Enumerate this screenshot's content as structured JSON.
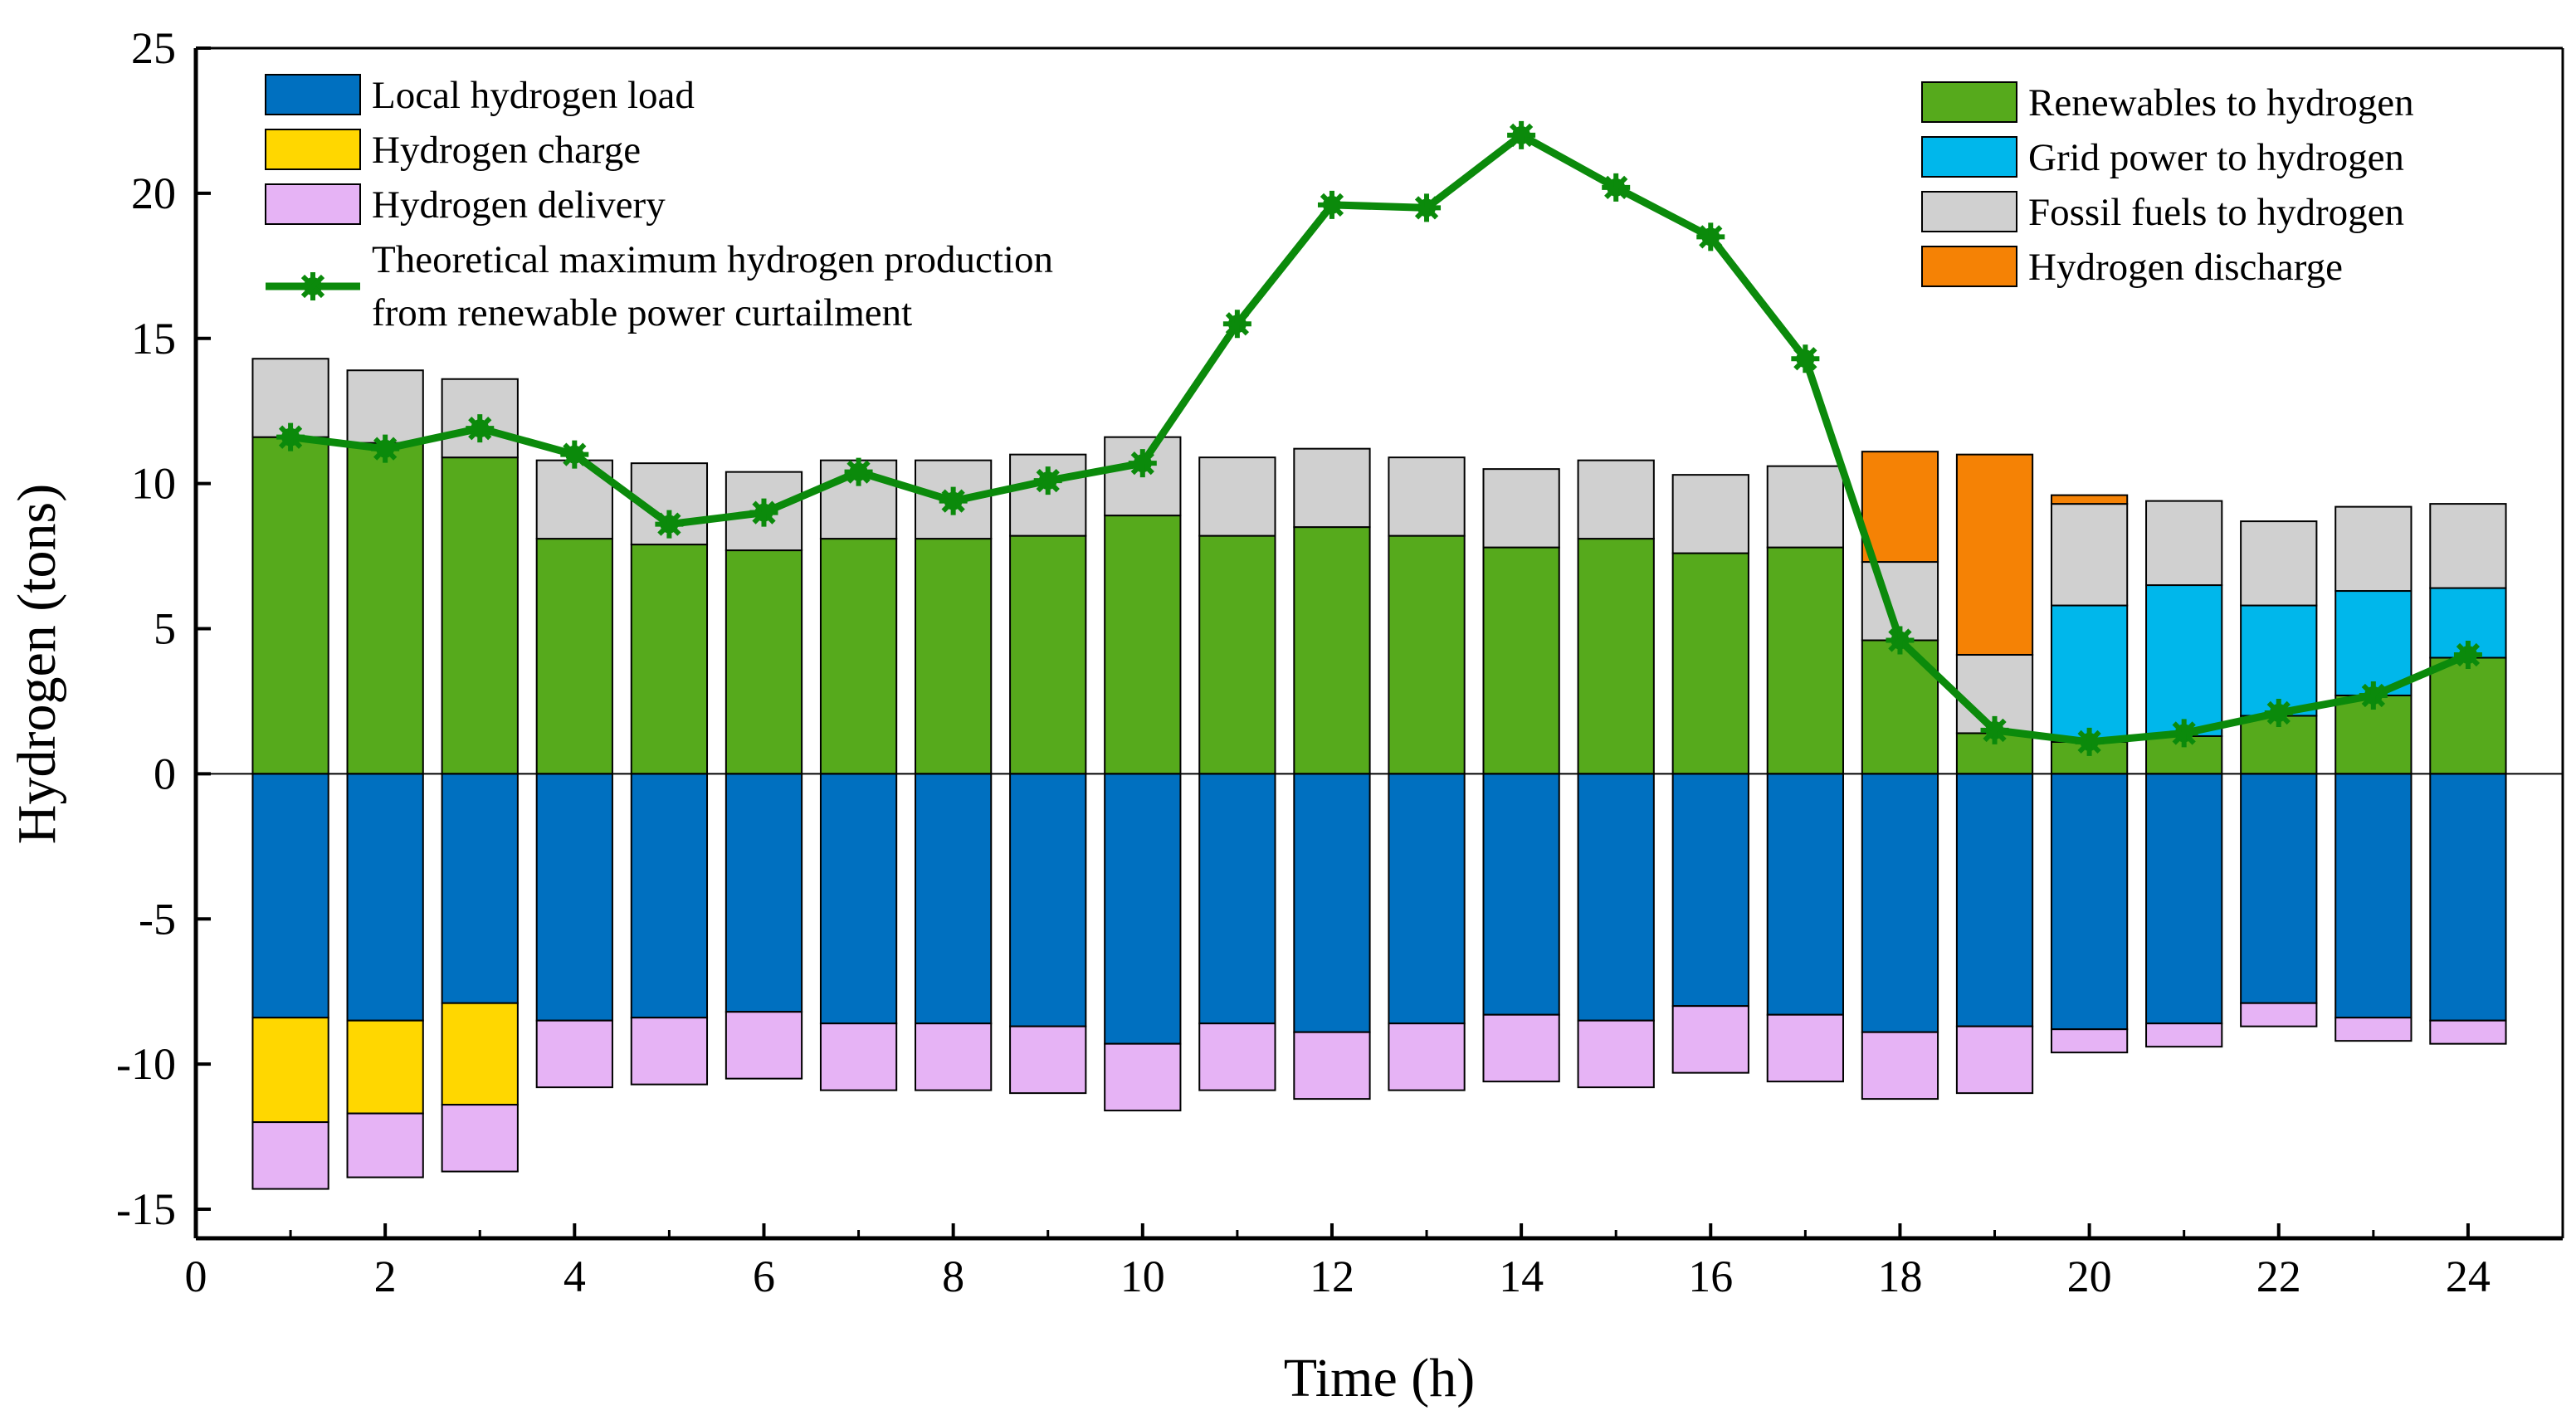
{
  "chart_data": {
    "type": "bar",
    "stacked": true,
    "title": "",
    "xlabel": "Time (h)",
    "ylabel": "Hydrogen (tons)",
    "xlim": [
      0,
      25
    ],
    "ylim": [
      -16,
      25
    ],
    "x_ticks": [
      0,
      2,
      4,
      6,
      8,
      10,
      12,
      14,
      16,
      18,
      20,
      22,
      24
    ],
    "y_ticks": [
      -15,
      -10,
      -5,
      0,
      5,
      10,
      15,
      20,
      25
    ],
    "x": [
      1,
      2,
      3,
      4,
      5,
      6,
      7,
      8,
      9,
      10,
      11,
      12,
      13,
      14,
      15,
      16,
      17,
      18,
      19,
      20,
      21,
      22,
      23,
      24
    ],
    "positive_series": [
      {
        "name": "Renewables to hydrogen",
        "color": "#56aa1c",
        "values": [
          11.6,
          11.4,
          10.9,
          8.1,
          7.9,
          7.7,
          8.1,
          8.1,
          8.2,
          8.9,
          8.2,
          8.5,
          8.2,
          7.8,
          8.1,
          7.6,
          7.8,
          4.6,
          1.4,
          1.1,
          1.3,
          2.0,
          2.7,
          4.0
        ]
      },
      {
        "name": "Grid power to hydrogen",
        "color": "#00b7eb",
        "values": [
          0,
          0,
          0,
          0,
          0,
          0,
          0,
          0,
          0,
          0,
          0,
          0,
          0,
          0,
          0,
          0,
          0,
          0,
          0,
          4.7,
          5.2,
          3.8,
          3.6,
          2.4
        ]
      },
      {
        "name": "Fossil fuels to hydrogen",
        "color": "#d0d0d0",
        "values": [
          2.7,
          2.5,
          2.7,
          2.7,
          2.8,
          2.7,
          2.7,
          2.7,
          2.8,
          2.7,
          2.7,
          2.7,
          2.7,
          2.7,
          2.7,
          2.7,
          2.8,
          2.7,
          2.7,
          3.5,
          2.9,
          2.9,
          2.9,
          2.9
        ]
      },
      {
        "name": "Hydrogen discharge",
        "color": "#f58205",
        "values": [
          0,
          0,
          0,
          0,
          0,
          0,
          0,
          0,
          0,
          0,
          0,
          0,
          0,
          0,
          0,
          0,
          0,
          3.8,
          6.9,
          0.3,
          0,
          0,
          0,
          0
        ]
      }
    ],
    "negative_series": [
      {
        "name": "Local hydrogen load",
        "color": "#0070c0",
        "values": [
          -8.4,
          -8.5,
          -7.9,
          -8.5,
          -8.4,
          -8.2,
          -8.6,
          -8.6,
          -8.7,
          -9.3,
          -8.6,
          -8.9,
          -8.6,
          -8.3,
          -8.5,
          -8.0,
          -8.3,
          -8.9,
          -8.7,
          -8.8,
          -8.6,
          -7.9,
          -8.4,
          -8.5
        ]
      },
      {
        "name": "Hydrogen charge",
        "color": "#ffd700",
        "values": [
          -3.6,
          -3.2,
          -3.5,
          0,
          0,
          0,
          0,
          0,
          0,
          0,
          0,
          0,
          0,
          0,
          0,
          0,
          0,
          0,
          0,
          0,
          0,
          0,
          0,
          0
        ]
      },
      {
        "name": "Hydrogen delivery",
        "color": "#e6b3f5",
        "values": [
          -2.3,
          -2.2,
          -2.3,
          -2.3,
          -2.3,
          -2.3,
          -2.3,
          -2.3,
          -2.3,
          -2.3,
          -2.3,
          -2.3,
          -2.3,
          -2.3,
          -2.3,
          -2.3,
          -2.3,
          -2.3,
          -2.3,
          -0.8,
          -0.8,
          -0.8,
          -0.8,
          -0.8
        ]
      }
    ],
    "line_series": {
      "name": "Theoretical maximum hydrogen production from renewable power curtailment",
      "color": "#0b8a0b",
      "values": [
        11.6,
        11.2,
        11.9,
        11.0,
        8.6,
        9.0,
        10.4,
        9.4,
        10.1,
        10.7,
        15.5,
        19.6,
        19.5,
        22.0,
        20.2,
        18.5,
        14.3,
        4.6,
        1.5,
        1.1,
        1.4,
        2.1,
        2.7,
        4.1
      ]
    },
    "legend_left": {
      "position": "top-left",
      "items": [
        {
          "label": "Local hydrogen load",
          "color": "#0070c0",
          "kind": "patch"
        },
        {
          "label": "Hydrogen charge",
          "color": "#ffd700",
          "kind": "patch"
        },
        {
          "label": "Hydrogen delivery",
          "color": "#e6b3f5",
          "kind": "patch"
        },
        {
          "label": "Theoretical maximum hydrogen production",
          "label2": "from renewable power curtailment",
          "color": "#0b8a0b",
          "kind": "line"
        }
      ]
    },
    "legend_right": {
      "position": "top-right",
      "items": [
        {
          "label": "Renewables to hydrogen",
          "color": "#56aa1c",
          "kind": "patch"
        },
        {
          "label": "Grid power to hydrogen",
          "color": "#00b7eb",
          "kind": "patch"
        },
        {
          "label": "Fossil fuels to hydrogen",
          "color": "#d0d0d0",
          "kind": "patch"
        },
        {
          "label": "Hydrogen discharge",
          "color": "#f58205",
          "kind": "patch"
        }
      ]
    }
  }
}
